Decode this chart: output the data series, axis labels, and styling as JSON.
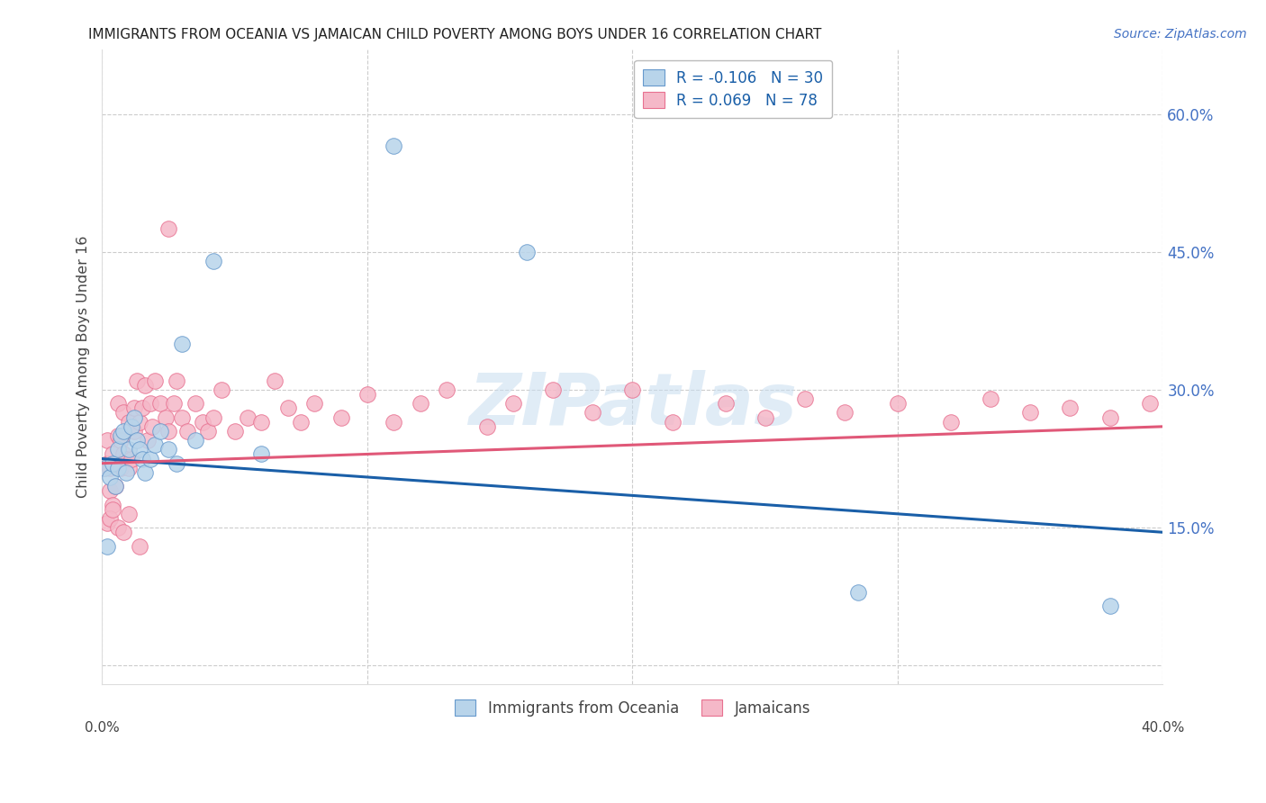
{
  "title": "IMMIGRANTS FROM OCEANIA VS JAMAICAN CHILD POVERTY AMONG BOYS UNDER 16 CORRELATION CHART",
  "source": "Source: ZipAtlas.com",
  "ylabel": "Child Poverty Among Boys Under 16",
  "yticks": [
    0.0,
    0.15,
    0.3,
    0.45,
    0.6
  ],
  "ytick_labels": [
    "",
    "15.0%",
    "30.0%",
    "45.0%",
    "60.0%"
  ],
  "xlim": [
    0.0,
    0.4
  ],
  "ylim": [
    -0.02,
    0.67
  ],
  "legend_blue_r": "-0.106",
  "legend_blue_n": "30",
  "legend_pink_r": "0.069",
  "legend_pink_n": "78",
  "legend_label_blue": "Immigrants from Oceania",
  "legend_label_pink": "Jamaicans",
  "blue_color": "#b8d4ea",
  "pink_color": "#f5b8c8",
  "blue_edge_color": "#6699cc",
  "pink_edge_color": "#e87090",
  "blue_line_color": "#1a5fa8",
  "pink_line_color": "#e05878",
  "watermark": "ZIPatlas",
  "blue_x": [
    0.001,
    0.002,
    0.003,
    0.004,
    0.005,
    0.006,
    0.006,
    0.007,
    0.008,
    0.009,
    0.01,
    0.011,
    0.012,
    0.013,
    0.014,
    0.015,
    0.016,
    0.018,
    0.02,
    0.022,
    0.025,
    0.028,
    0.03,
    0.035,
    0.042,
    0.06,
    0.11,
    0.16,
    0.285,
    0.38
  ],
  "blue_y": [
    0.215,
    0.13,
    0.205,
    0.22,
    0.195,
    0.235,
    0.215,
    0.25,
    0.255,
    0.21,
    0.235,
    0.26,
    0.27,
    0.245,
    0.235,
    0.225,
    0.21,
    0.225,
    0.24,
    0.255,
    0.235,
    0.22,
    0.35,
    0.245,
    0.44,
    0.23,
    0.565,
    0.45,
    0.08,
    0.065
  ],
  "pink_x": [
    0.001,
    0.002,
    0.002,
    0.003,
    0.003,
    0.004,
    0.004,
    0.005,
    0.005,
    0.006,
    0.006,
    0.007,
    0.007,
    0.008,
    0.008,
    0.009,
    0.01,
    0.01,
    0.011,
    0.012,
    0.012,
    0.013,
    0.014,
    0.015,
    0.016,
    0.017,
    0.018,
    0.019,
    0.02,
    0.022,
    0.024,
    0.025,
    0.027,
    0.028,
    0.03,
    0.032,
    0.035,
    0.038,
    0.04,
    0.042,
    0.045,
    0.05,
    0.055,
    0.06,
    0.065,
    0.07,
    0.075,
    0.08,
    0.09,
    0.1,
    0.11,
    0.12,
    0.13,
    0.145,
    0.155,
    0.17,
    0.185,
    0.2,
    0.215,
    0.235,
    0.25,
    0.265,
    0.28,
    0.3,
    0.32,
    0.335,
    0.35,
    0.365,
    0.38,
    0.395,
    0.002,
    0.003,
    0.004,
    0.006,
    0.008,
    0.01,
    0.014,
    0.025
  ],
  "pink_y": [
    0.215,
    0.22,
    0.245,
    0.19,
    0.215,
    0.23,
    0.175,
    0.22,
    0.195,
    0.25,
    0.285,
    0.215,
    0.245,
    0.23,
    0.275,
    0.225,
    0.265,
    0.215,
    0.225,
    0.28,
    0.255,
    0.31,
    0.265,
    0.28,
    0.305,
    0.245,
    0.285,
    0.26,
    0.31,
    0.285,
    0.27,
    0.255,
    0.285,
    0.31,
    0.27,
    0.255,
    0.285,
    0.265,
    0.255,
    0.27,
    0.3,
    0.255,
    0.27,
    0.265,
    0.31,
    0.28,
    0.265,
    0.285,
    0.27,
    0.295,
    0.265,
    0.285,
    0.3,
    0.26,
    0.285,
    0.3,
    0.275,
    0.3,
    0.265,
    0.285,
    0.27,
    0.29,
    0.275,
    0.285,
    0.265,
    0.29,
    0.275,
    0.28,
    0.27,
    0.285,
    0.155,
    0.16,
    0.17,
    0.15,
    0.145,
    0.165,
    0.13,
    0.475
  ]
}
